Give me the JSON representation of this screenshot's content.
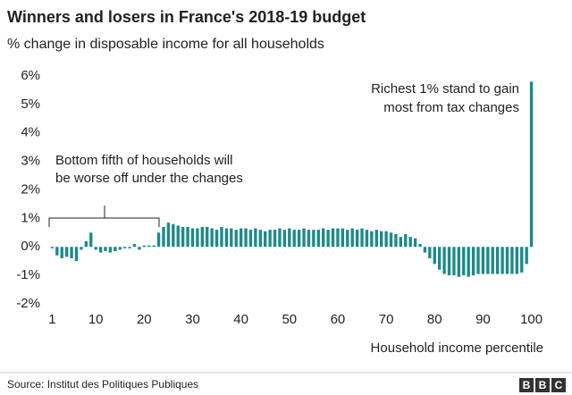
{
  "chart_data": {
    "type": "bar",
    "title": "Winners and losers in France's 2018-19 budget",
    "subtitle": "% change in disposable income for all households",
    "x_label": "Household income percentile",
    "annotations": [
      [
        "Bottom fifth of households will",
        "be worse off under the changes"
      ],
      [
        "Richest 1% stand to gain",
        "most from tax changes"
      ]
    ],
    "source": "Source: Institut des Politiques Publiques",
    "logo": [
      "B",
      "B",
      "C"
    ],
    "color": "#1c8a8a",
    "x": [
      1,
      2,
      3,
      4,
      5,
      6,
      7,
      8,
      9,
      10,
      11,
      12,
      13,
      14,
      15,
      16,
      17,
      18,
      19,
      20,
      21,
      22,
      23,
      24,
      25,
      26,
      27,
      28,
      29,
      30,
      31,
      32,
      33,
      34,
      35,
      36,
      37,
      38,
      39,
      40,
      41,
      42,
      43,
      44,
      45,
      46,
      47,
      48,
      49,
      50,
      51,
      52,
      53,
      54,
      55,
      56,
      57,
      58,
      59,
      60,
      61,
      62,
      63,
      64,
      65,
      66,
      67,
      68,
      69,
      70,
      71,
      72,
      73,
      74,
      75,
      76,
      77,
      78,
      79,
      80,
      81,
      82,
      83,
      84,
      85,
      86,
      87,
      88,
      89,
      90,
      91,
      92,
      93,
      94,
      95,
      96,
      97,
      98,
      99,
      100
    ],
    "values": [
      -0.05,
      -0.3,
      -0.4,
      -0.35,
      -0.4,
      -0.5,
      -0.1,
      0.2,
      0.5,
      -0.1,
      -0.2,
      -0.15,
      -0.2,
      -0.15,
      -0.1,
      -0.05,
      -0.05,
      0.1,
      -0.1,
      0.05,
      0.05,
      0.05,
      0.5,
      0.7,
      0.85,
      0.8,
      0.75,
      0.7,
      0.7,
      0.65,
      0.65,
      0.7,
      0.7,
      0.65,
      0.6,
      0.7,
      0.65,
      0.65,
      0.6,
      0.65,
      0.65,
      0.6,
      0.65,
      0.6,
      0.55,
      0.6,
      0.6,
      0.65,
      0.6,
      0.65,
      0.6,
      0.6,
      0.65,
      0.6,
      0.6,
      0.6,
      0.65,
      0.6,
      0.65,
      0.65,
      0.65,
      0.6,
      0.65,
      0.6,
      0.65,
      0.6,
      0.55,
      0.6,
      0.55,
      0.55,
      0.5,
      0.45,
      0.35,
      0.45,
      0.35,
      0.3,
      0.1,
      -0.2,
      -0.4,
      -0.6,
      -0.8,
      -0.95,
      -1.0,
      -1.0,
      -1.05,
      -1.0,
      -1.05,
      -1.0,
      -0.95,
      -0.95,
      -0.95,
      -0.95,
      -0.95,
      -0.95,
      -0.95,
      -0.95,
      -0.95,
      -0.9,
      -0.6,
      5.8
    ],
    "xlim": [
      0,
      101
    ],
    "xticks": [
      1,
      10,
      20,
      30,
      40,
      50,
      60,
      70,
      80,
      90,
      100
    ],
    "ylim": [
      -2,
      6
    ],
    "yticks": [
      {
        "value": -2,
        "label": "-2%"
      },
      {
        "value": -1,
        "label": "-1%"
      },
      {
        "value": 0,
        "label": "0%"
      },
      {
        "value": 1,
        "label": "1%"
      },
      {
        "value": 2,
        "label": "2%"
      },
      {
        "value": 3,
        "label": "3%"
      },
      {
        "value": 4,
        "label": "4%"
      },
      {
        "value": 5,
        "label": "5%"
      },
      {
        "value": 6,
        "label": "6%"
      }
    ]
  }
}
